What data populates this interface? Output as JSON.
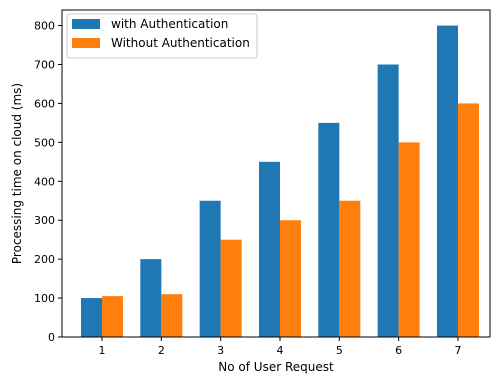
{
  "chart_data": {
    "type": "bar",
    "title": "",
    "xlabel": "No of User Request",
    "ylabel": "Processing time on cloud  (ms)",
    "categories": [
      "1",
      "2",
      "3",
      "4",
      "5",
      "6",
      "7"
    ],
    "series": [
      {
        "name": "with Authentication",
        "color": "#1f77b4",
        "values": [
          100,
          200,
          350,
          450,
          550,
          700,
          800
        ]
      },
      {
        "name": "Without Authentication",
        "color": "#ff7f0e",
        "values": [
          105,
          110,
          250,
          300,
          350,
          500,
          600
        ]
      }
    ],
    "ylim": [
      0,
      840
    ],
    "yticks": [
      "0",
      "100",
      "200",
      "300",
      "400",
      "500",
      "600",
      "700",
      "800"
    ],
    "grid": false,
    "legend_position": "top-left"
  }
}
